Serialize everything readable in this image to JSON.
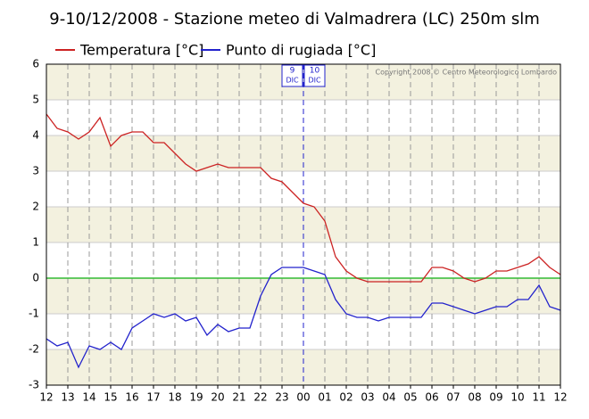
{
  "chart_data": {
    "type": "line",
    "title": "9-10/12/2008 - Stazione meteo di Valmadrera (LC) 250m slm",
    "copyright": "Copyright 2008 © Centro Meteorologico Lombardo",
    "date_markers": [
      {
        "day": "9",
        "month": "DIC"
      },
      {
        "day": "10",
        "month": "DIC"
      }
    ],
    "x": [
      12,
      12.5,
      13,
      13.5,
      14,
      14.5,
      15,
      15.5,
      16,
      16.5,
      17,
      17.5,
      18,
      18.5,
      19,
      19.5,
      20,
      20.5,
      21,
      21.5,
      22,
      22.5,
      23,
      23.5,
      24,
      24.5,
      25,
      25.5,
      26,
      26.5,
      27,
      27.5,
      28,
      28.5,
      29,
      29.5,
      30,
      30.5,
      31,
      31.5,
      32,
      32.5,
      33,
      33.5,
      34,
      34.5,
      35,
      35.5,
      36
    ],
    "series": [
      {
        "name": "Temperatura [°C]",
        "color": "#cc2222",
        "values": [
          4.6,
          4.2,
          4.1,
          3.9,
          4.1,
          4.5,
          3.7,
          4.0,
          4.1,
          4.1,
          3.8,
          3.8,
          3.5,
          3.2,
          3.0,
          3.1,
          3.2,
          3.1,
          3.1,
          3.1,
          3.1,
          2.8,
          2.7,
          2.4,
          2.1,
          2.0,
          1.6,
          0.6,
          0.2,
          0.0,
          -0.1,
          -0.1,
          -0.1,
          -0.1,
          -0.1,
          -0.1,
          0.3,
          0.3,
          0.2,
          0.0,
          -0.1,
          0.0,
          0.2,
          0.2,
          0.3,
          0.4,
          0.6,
          0.3,
          0.1
        ]
      },
      {
        "name": "Punto di rugiada [°C]",
        "color": "#2222cc",
        "values": [
          -1.7,
          -1.9,
          -1.8,
          -2.5,
          -1.9,
          -2.0,
          -1.8,
          -2.0,
          -1.4,
          -1.2,
          -1.0,
          -1.1,
          -1.0,
          -1.2,
          -1.1,
          -1.6,
          -1.3,
          -1.5,
          -1.4,
          -1.4,
          -0.5,
          0.1,
          0.3,
          0.3,
          0.3,
          0.2,
          0.1,
          -0.6,
          -1.0,
          -1.1,
          -1.1,
          -1.2,
          -1.1,
          -1.1,
          -1.1,
          -1.1,
          -0.7,
          -0.7,
          -0.8,
          -0.9,
          -1.0,
          -0.9,
          -0.8,
          -0.8,
          -0.6,
          -0.6,
          -0.2,
          -0.8,
          -0.9
        ]
      }
    ],
    "xlim": [
      12,
      36
    ],
    "xticks": [
      12,
      13,
      14,
      15,
      16,
      17,
      18,
      19,
      20,
      21,
      22,
      23,
      {
        "value": 24,
        "label": "00"
      },
      {
        "value": 25,
        "label": "01"
      },
      {
        "value": 26,
        "label": "02"
      },
      {
        "value": 27,
        "label": "03"
      },
      {
        "value": 28,
        "label": "04"
      },
      {
        "value": 29,
        "label": "05"
      },
      {
        "value": 30,
        "label": "06"
      },
      {
        "value": 31,
        "label": "07"
      },
      {
        "value": 32,
        "label": "08"
      },
      {
        "value": 33,
        "label": "09"
      },
      {
        "value": 34,
        "label": "10"
      },
      {
        "value": 35,
        "label": "11"
      },
      {
        "value": 36,
        "label": "12"
      }
    ],
    "ylim": [
      -3,
      6
    ],
    "yticks": [
      -3,
      -2,
      -1,
      0,
      1,
      2,
      3,
      4,
      5,
      6
    ],
    "grid": true,
    "zero_line_color": "#33bb33"
  }
}
